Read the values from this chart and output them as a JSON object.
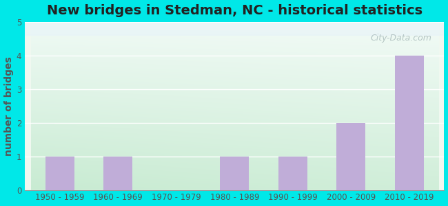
{
  "title": "New bridges in Stedman, NC - historical statistics",
  "categories": [
    "1950 - 1959",
    "1960 - 1969",
    "1970 - 1979",
    "1980 - 1989",
    "1990 - 1999",
    "2000 - 2009",
    "2010 - 2019"
  ],
  "values": [
    1,
    1,
    0,
    1,
    1,
    2,
    4
  ],
  "bar_color": "#c0add8",
  "ylabel": "number of bridges",
  "ylim": [
    0,
    5
  ],
  "yticks": [
    0,
    1,
    2,
    3,
    4,
    5
  ],
  "background_outer": "#00e8e8",
  "title_fontsize": 14,
  "axis_label_fontsize": 10,
  "tick_fontsize": 8.5,
  "title_color": "#222222",
  "tick_color": "#555555",
  "ylabel_color": "#555555",
  "watermark": "City-Data.com",
  "gradient_top": "#f0f8f0",
  "gradient_bottom": "#c8ecd0",
  "gradient_top_right": "#f8f8ff",
  "white_band_top": "#e8f4f8"
}
